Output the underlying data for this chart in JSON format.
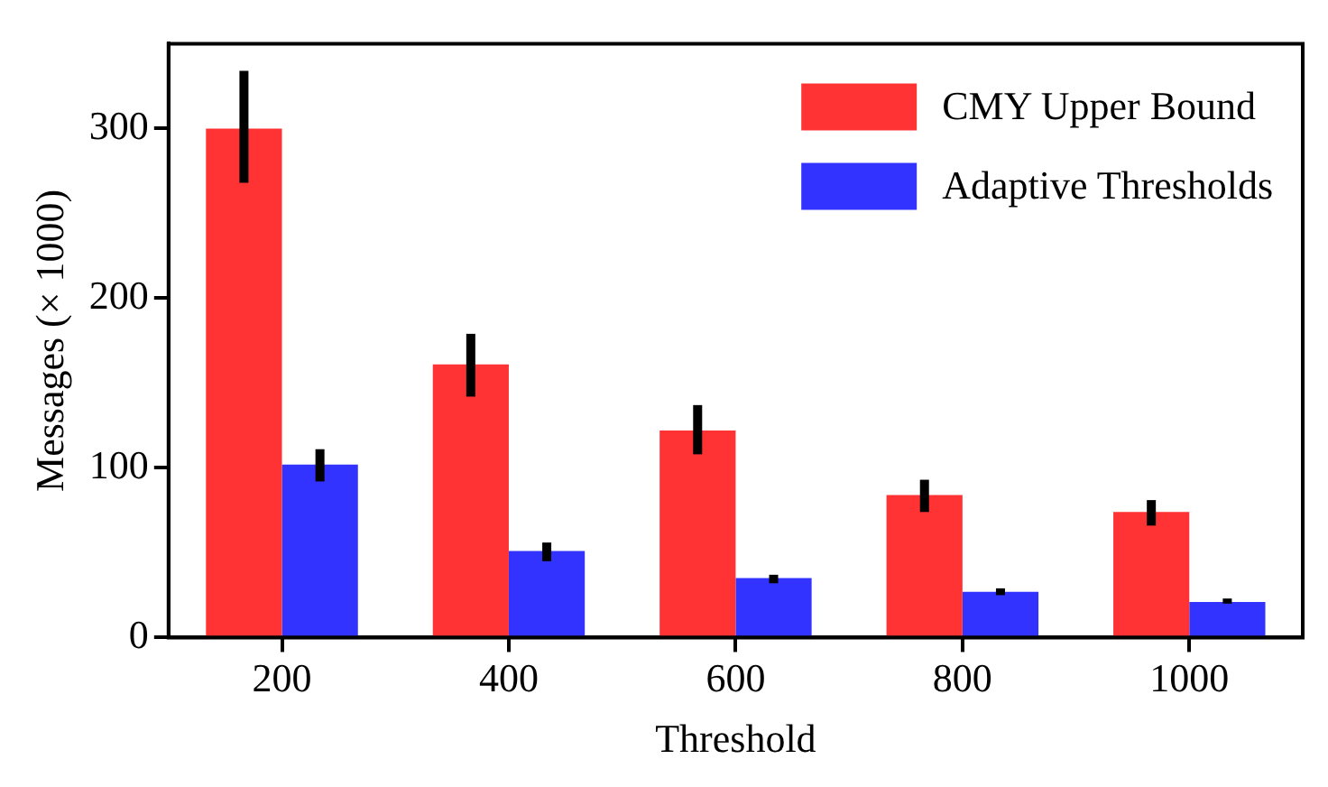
{
  "chart_data": {
    "type": "bar",
    "xlabel": "Threshold",
    "ylabel": "Messages (× 1000)",
    "categories": [
      "200",
      "400",
      "600",
      "800",
      "1000"
    ],
    "series": [
      {
        "name": "CMY Upper Bound",
        "color": "#ff3333",
        "values": [
          300,
          161,
          122,
          84,
          74
        ],
        "errors": [
          [
            268,
            334
          ],
          [
            142,
            179
          ],
          [
            108,
            137
          ],
          [
            74,
            93
          ],
          [
            66,
            81
          ]
        ]
      },
      {
        "name": "Adaptive Thresholds",
        "color": "#3333ff",
        "values": [
          102,
          51,
          35,
          27,
          21
        ],
        "errors": [
          [
            92,
            111
          ],
          [
            45,
            56
          ],
          [
            32,
            37
          ],
          [
            25,
            29
          ],
          [
            20,
            23
          ]
        ]
      }
    ],
    "ylim": [
      0,
      350
    ],
    "yticks": [
      0,
      100,
      200,
      300
    ],
    "grid": false,
    "legend": "top right"
  }
}
